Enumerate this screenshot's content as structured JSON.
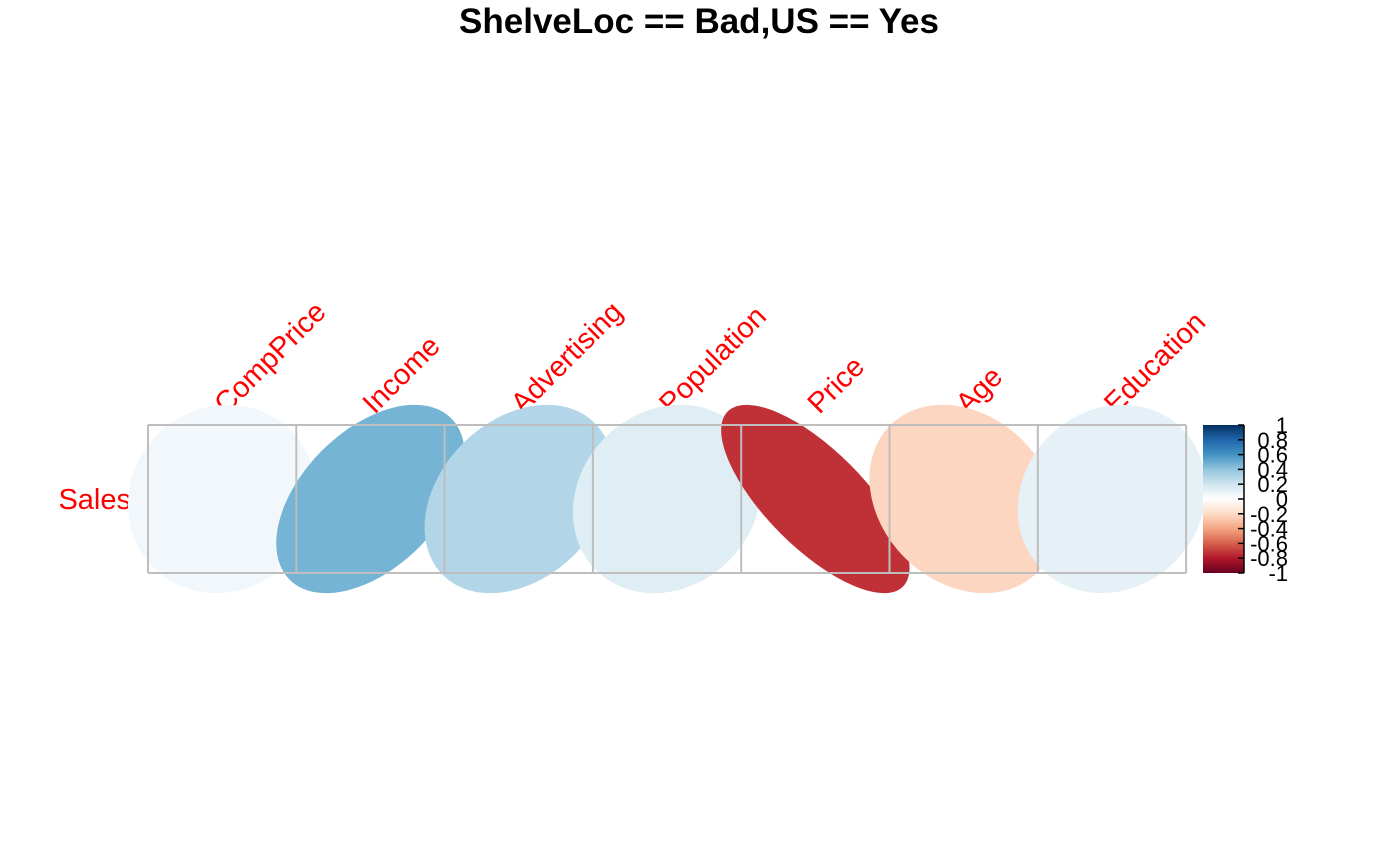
{
  "chart_data": {
    "type": "heatmap",
    "subtype": "correlation-ellipse",
    "title": "ShelveLoc == Bad,US == Yes",
    "rows": [
      "Sales"
    ],
    "columns": [
      "CompPrice",
      "Income",
      "Advertising",
      "Population",
      "Price",
      "Age",
      "Education"
    ],
    "values": [
      [
        0.06,
        0.47,
        0.3,
        0.14,
        -0.73,
        -0.22,
        0.11
      ]
    ],
    "label_color": "#FF0000",
    "colorbar": {
      "range": [
        -1,
        1
      ],
      "ticks": [
        "1",
        "0.8",
        "0.6",
        "0.4",
        "0.2",
        "0",
        "-0.2",
        "-0.4",
        "-0.6",
        "-0.8",
        "-1"
      ],
      "palette": [
        "#67001F",
        "#B2182B",
        "#D6604D",
        "#F4A582",
        "#FDDBC7",
        "#FFFFFF",
        "#D1E5F0",
        "#92C5DE",
        "#4393C3",
        "#2166AC",
        "#053061"
      ]
    },
    "grid_color": "#BEBEBE",
    "legend": "right"
  }
}
